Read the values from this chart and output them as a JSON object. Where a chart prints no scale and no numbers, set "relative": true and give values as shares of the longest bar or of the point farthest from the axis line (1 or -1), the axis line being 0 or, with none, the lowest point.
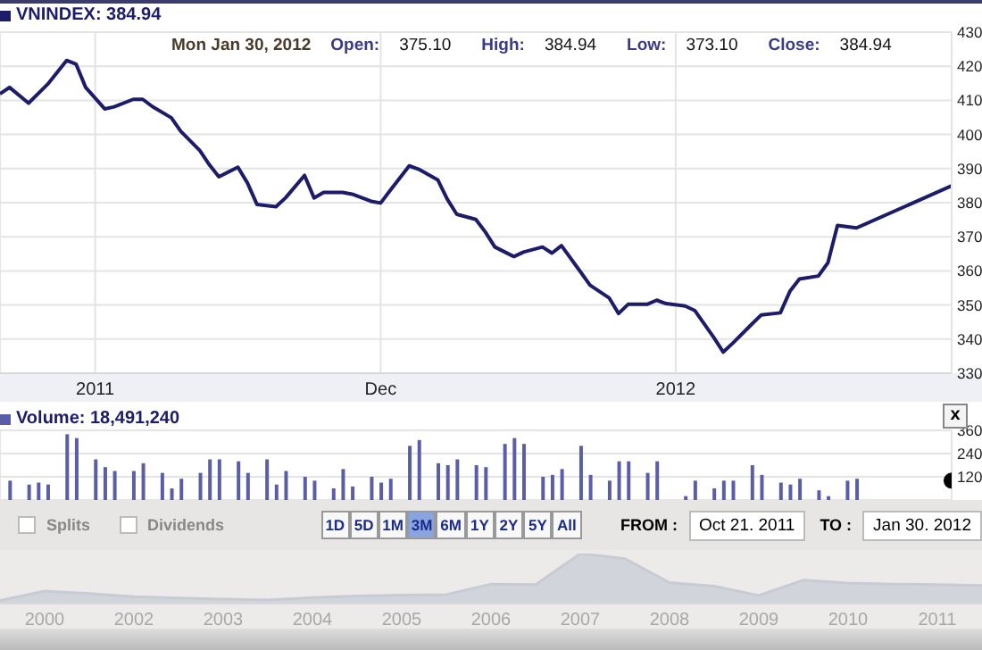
{
  "chart_data": [
    {
      "type": "line",
      "legend": "top left",
      "grid": true,
      "xlim": [
        "2011-10-22",
        "2012-01-30"
      ],
      "xticks": [
        {
          "value": "2011-11-01",
          "label": "2011"
        },
        {
          "value": "2011-12-01",
          "label": "Dec"
        },
        {
          "value": "2012-01-01",
          "label": "2012"
        }
      ],
      "ylim": [
        330,
        430
      ],
      "yticks": [
        330,
        340,
        350,
        360,
        370,
        380,
        390,
        400,
        410,
        420,
        430
      ],
      "annotations": [
        "Mon Jan 30, 2012",
        "Open:",
        "375.10",
        "High:",
        "384.94",
        "Low:",
        "373.10",
        "Close:",
        "384.94"
      ],
      "x": [
        "2011-10-22",
        "2011-10-23",
        "2011-10-25",
        "2011-10-27",
        "2011-10-29",
        "2011-10-30",
        "2011-10-31",
        "2011-11-02",
        "2011-11-03",
        "2011-11-05",
        "2011-11-06",
        "2011-11-07",
        "2011-11-09",
        "2011-11-10",
        "2011-11-12",
        "2011-11-13",
        "2011-11-14",
        "2011-11-16",
        "2011-11-17",
        "2011-11-18",
        "2011-11-20",
        "2011-11-21",
        "2011-11-23",
        "2011-11-24",
        "2011-11-25",
        "2011-11-27",
        "2011-11-28",
        "2011-11-30",
        "2011-12-01",
        "2011-12-02",
        "2011-12-04",
        "2011-12-05",
        "2011-12-07",
        "2011-12-08",
        "2011-12-09",
        "2011-12-11",
        "2011-12-12",
        "2011-12-13",
        "2011-12-15",
        "2011-12-16",
        "2011-12-18",
        "2011-12-19",
        "2011-12-20",
        "2011-12-22",
        "2011-12-23",
        "2011-12-25",
        "2011-12-26",
        "2011-12-27",
        "2011-12-29",
        "2011-12-30",
        "2011-12-31",
        "2012-01-02",
        "2012-01-03",
        "2012-01-05",
        "2012-01-06",
        "2012-01-07",
        "2012-01-09",
        "2012-01-10",
        "2012-01-12",
        "2012-01-13",
        "2012-01-14",
        "2012-01-16",
        "2012-01-17",
        "2012-01-18",
        "2012-01-20",
        "2012-01-30"
      ],
      "series": [
        {
          "name": "VNINDEX: 384.94",
          "color": "#1c1c6b",
          "values": [
            411.9,
            413.8,
            409.2,
            414.7,
            421.7,
            420.6,
            413.8,
            407.5,
            408.1,
            410.3,
            410.3,
            408.2,
            404.9,
            400.9,
            395.3,
            391.1,
            387.6,
            390.4,
            385.8,
            379.5,
            378.8,
            381.4,
            388.0,
            381.4,
            383.0,
            383.0,
            382.5,
            380.4,
            379.9,
            383.6,
            390.8,
            389.8,
            386.7,
            381.0,
            376.6,
            375.1,
            371.4,
            367.0,
            364.2,
            365.5,
            367.0,
            365.2,
            367.4,
            359.7,
            355.8,
            352.1,
            347.5,
            350.2,
            350.2,
            351.4,
            350.4,
            349.7,
            348.4,
            340.5,
            336.2,
            338.8,
            344.4,
            347.1,
            347.7,
            354.0,
            357.6,
            358.5,
            362.4,
            373.3,
            372.6,
            384.94
          ]
        }
      ]
    },
    {
      "type": "bar",
      "legend": "top left",
      "grid": true,
      "tick_labels": "y",
      "xlim": [
        "2011-10-22",
        "2012-01-30"
      ],
      "xticks": [
        {
          "value": "2011-11-01",
          "label": null
        },
        {
          "value": "2011-12-01",
          "label": null
        },
        {
          "value": "2012-01-01",
          "label": null
        }
      ],
      "ylim": [
        0,
        360
      ],
      "yticks": [
        120,
        240,
        360
      ],
      "annotations": [
        "x"
      ],
      "series": [
        {
          "name": "Volume: 18,491,240",
          "color": "#5a5ea8",
          "x": [
            "2011-10-23",
            "2011-10-25",
            "2011-10-26",
            "2011-10-27",
            "2011-10-29",
            "2011-10-30",
            "2011-11-01",
            "2011-11-02",
            "2011-11-03",
            "2011-11-05",
            "2011-11-06",
            "2011-11-08",
            "2011-11-09",
            "2011-11-10",
            "2011-11-12",
            "2011-11-13",
            "2011-11-14",
            "2011-11-16",
            "2011-11-17",
            "2011-11-19",
            "2011-11-20",
            "2011-11-21",
            "2011-11-23",
            "2011-11-24",
            "2011-11-26",
            "2011-11-27",
            "2011-11-28",
            "2011-11-30",
            "2011-12-01",
            "2011-12-02",
            "2011-12-04",
            "2011-12-05",
            "2011-12-07",
            "2011-12-08",
            "2011-12-09",
            "2011-12-11",
            "2011-12-12",
            "2011-12-14",
            "2011-12-15",
            "2011-12-16",
            "2011-12-18",
            "2011-12-19",
            "2011-12-20",
            "2011-12-22",
            "2011-12-23",
            "2011-12-25",
            "2011-12-26",
            "2011-12-27",
            "2011-12-29",
            "2011-12-30",
            "2012-01-02",
            "2012-01-03",
            "2012-01-05",
            "2012-01-06",
            "2012-01-07",
            "2012-01-09",
            "2012-01-10",
            "2012-01-12",
            "2012-01-13",
            "2012-01-14",
            "2012-01-16",
            "2012-01-17",
            "2012-01-19",
            "2012-01-20"
          ],
          "values": [
            100,
            80,
            90,
            80,
            340,
            320,
            210,
            170,
            150,
            150,
            190,
            140,
            60,
            110,
            140,
            210,
            210,
            200,
            140,
            210,
            80,
            150,
            120,
            100,
            60,
            160,
            70,
            120,
            90,
            110,
            280,
            310,
            190,
            180,
            210,
            180,
            170,
            290,
            320,
            290,
            120,
            130,
            160,
            280,
            130,
            100,
            200,
            200,
            140,
            200,
            20,
            100,
            60,
            100,
            100,
            180,
            130,
            90,
            80,
            110,
            50,
            20,
            100,
            110
          ]
        },
        {
          "type": "scatter",
          "color": "#000000",
          "x": [
            "2012-01-30"
          ],
          "values": [
            100
          ]
        }
      ]
    },
    {
      "type": "other",
      "annotations": [
        "Splits",
        "Dividends",
        "1D",
        "5D",
        "1M",
        "3M",
        "6M",
        "1Y",
        "2Y",
        "5Y",
        "All",
        "FROM :",
        "Oct 21. 2011",
        "TO :",
        "Jan 30. 2012"
      ]
    },
    {
      "type": "area",
      "relative": true,
      "tick_labels": "x",
      "categories": [
        null,
        "2000",
        null,
        "2002",
        null,
        "2003",
        null,
        "2004",
        null,
        "2005",
        null,
        "2006",
        null,
        "2007",
        null,
        "2008",
        null,
        "2009",
        null,
        "2010",
        null,
        "2011",
        null
      ],
      "series": [
        {
          "color": "#c8cbd4",
          "values": [
            0.06,
            0.25,
            0.2,
            0.14,
            0.11,
            0.09,
            0.07,
            0.12,
            0.15,
            0.17,
            0.18,
            0.39,
            0.38,
            1,
            0.9,
            0.42,
            0.35,
            0.16,
            0.47,
            0.41,
            0.39,
            0.38,
            0.36
          ]
        }
      ]
    }
  ]
}
